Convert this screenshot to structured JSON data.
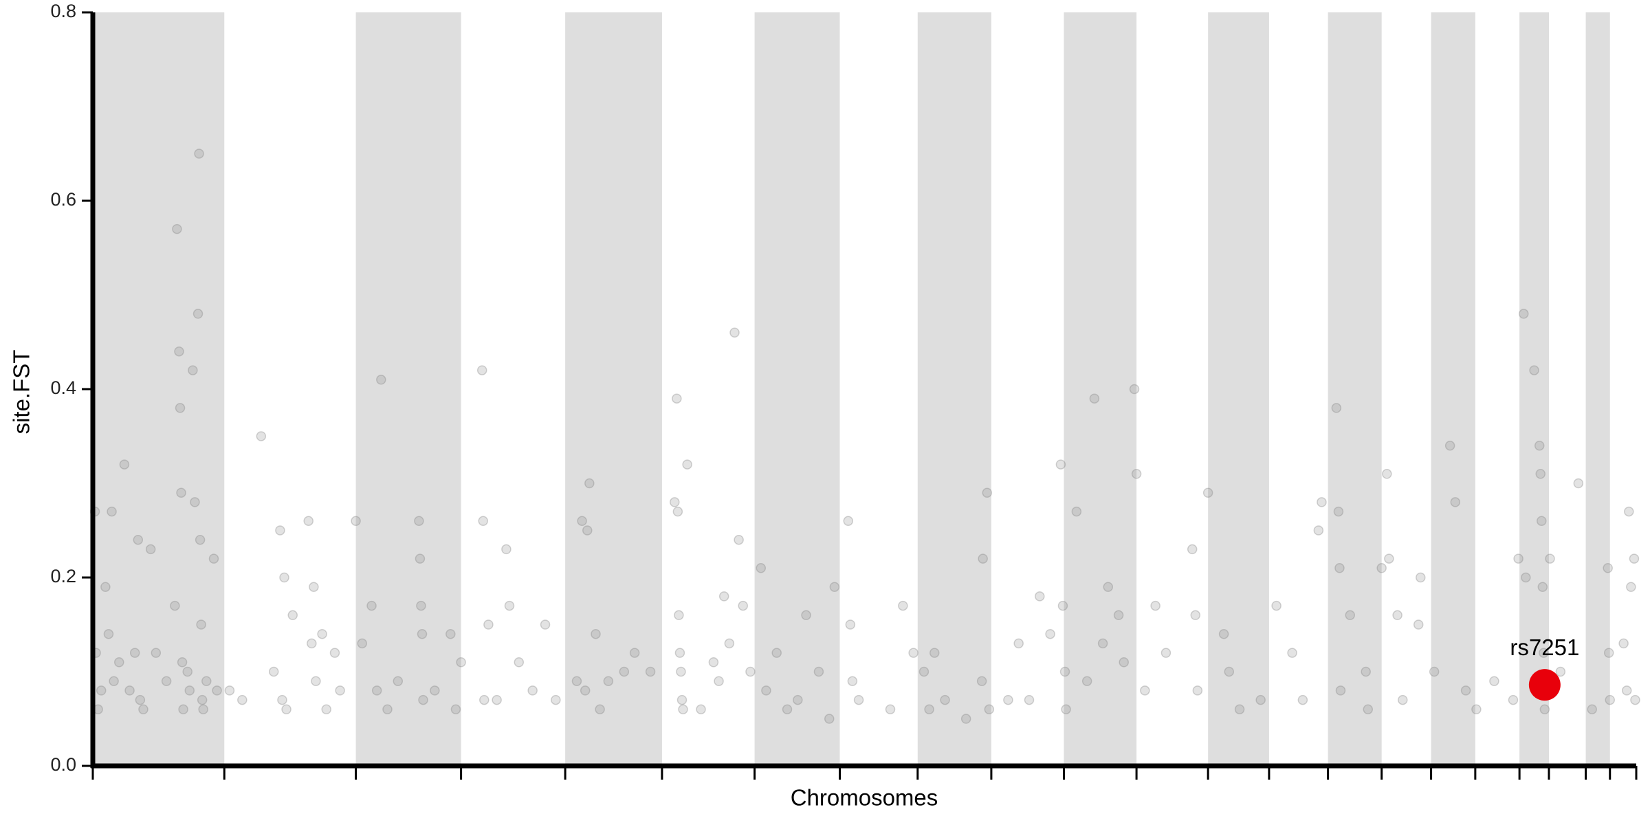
{
  "chart_data": {
    "type": "scatter",
    "xlabel": "Chromosomes",
    "ylabel": "site.FST",
    "xlim": [
      0,
      1467
    ],
    "ylim": [
      0,
      0.8
    ],
    "xticks": [
      0,
      125,
      250,
      350,
      449,
      541,
      629,
      710,
      784,
      854,
      923,
      992,
      1060,
      1118,
      1174,
      1225,
      1272,
      1314,
      1356,
      1384,
      1419,
      1442,
      1467
    ],
    "yticks": [
      {
        "value": 0,
        "label": "0.0"
      },
      0.2,
      0.4,
      0.6,
      0.8
    ],
    "band_color": "#dedede",
    "series": [
      {
        "color": "#808080",
        "x": [
          2,
          3,
          5,
          8,
          12,
          15,
          18,
          20,
          25,
          30,
          35,
          40,
          43,
          45,
          48,
          55,
          60,
          70,
          78,
          80,
          82,
          83,
          84,
          85,
          86,
          90,
          92,
          95,
          97,
          100,
          101,
          102,
          103,
          104,
          105,
          108,
          115,
          118,
          130,
          142,
          160,
          172,
          178,
          180,
          182,
          184,
          190,
          205,
          208,
          210,
          212,
          218,
          222,
          230,
          235,
          250,
          256,
          265,
          270,
          274,
          280,
          290,
          310,
          311,
          312,
          313,
          314,
          325,
          340,
          345,
          350,
          370,
          371,
          372,
          376,
          384,
          393,
          396,
          405,
          418,
          430,
          440,
          460,
          465,
          468,
          470,
          472,
          478,
          482,
          490,
          505,
          515,
          530,
          553,
          555,
          556,
          557,
          558,
          559,
          560,
          561,
          565,
          578,
          590,
          595,
          600,
          605,
          610,
          614,
          618,
          625,
          635,
          640,
          650,
          660,
          670,
          678,
          690,
          700,
          705,
          718,
          720,
          722,
          728,
          758,
          770,
          780,
          790,
          795,
          800,
          810,
          830,
          845,
          846,
          850,
          852,
          870,
          880,
          890,
          900,
          910,
          920,
          922,
          924,
          925,
          935,
          945,
          952,
          960,
          965,
          975,
          980,
          990,
          992,
          1000,
          1010,
          1020,
          1045,
          1048,
          1050,
          1060,
          1075,
          1080,
          1090,
          1110,
          1125,
          1140,
          1150,
          1165,
          1168,
          1182,
          1184,
          1185,
          1186,
          1195,
          1210,
          1212,
          1225,
          1230,
          1232,
          1240,
          1245,
          1260,
          1262,
          1275,
          1290,
          1295,
          1305,
          1315,
          1332,
          1350,
          1355,
          1360,
          1362,
          1370,
          1375,
          1376,
          1377,
          1378,
          1379,
          1380,
          1385,
          1395,
          1412,
          1425,
          1440,
          1441,
          1442,
          1455,
          1458,
          1460,
          1462,
          1465,
          1466
        ],
        "values": [
          0.27,
          0.12,
          0.06,
          0.08,
          0.19,
          0.14,
          0.27,
          0.09,
          0.11,
          0.32,
          0.08,
          0.12,
          0.24,
          0.07,
          0.06,
          0.23,
          0.12,
          0.09,
          0.17,
          0.57,
          0.44,
          0.38,
          0.29,
          0.11,
          0.06,
          0.1,
          0.08,
          0.42,
          0.28,
          0.48,
          0.65,
          0.24,
          0.15,
          0.07,
          0.06,
          0.09,
          0.22,
          0.08,
          0.08,
          0.07,
          0.35,
          0.1,
          0.25,
          0.07,
          0.2,
          0.06,
          0.16,
          0.26,
          0.13,
          0.19,
          0.09,
          0.14,
          0.06,
          0.12,
          0.08,
          0.26,
          0.13,
          0.17,
          0.08,
          0.41,
          0.06,
          0.09,
          0.26,
          0.22,
          0.17,
          0.14,
          0.07,
          0.08,
          0.14,
          0.06,
          0.11,
          0.42,
          0.26,
          0.07,
          0.15,
          0.07,
          0.23,
          0.17,
          0.11,
          0.08,
          0.15,
          0.07,
          0.09,
          0.26,
          0.08,
          0.25,
          0.3,
          0.14,
          0.06,
          0.09,
          0.1,
          0.12,
          0.1,
          0.28,
          0.39,
          0.27,
          0.16,
          0.12,
          0.1,
          0.07,
          0.06,
          0.32,
          0.06,
          0.11,
          0.09,
          0.18,
          0.13,
          0.46,
          0.24,
          0.17,
          0.1,
          0.21,
          0.08,
          0.12,
          0.06,
          0.07,
          0.16,
          0.1,
          0.05,
          0.19,
          0.26,
          0.15,
          0.09,
          0.07,
          0.06,
          0.17,
          0.12,
          0.1,
          0.06,
          0.12,
          0.07,
          0.05,
          0.09,
          0.22,
          0.29,
          0.06,
          0.07,
          0.13,
          0.07,
          0.18,
          0.14,
          0.32,
          0.17,
          0.1,
          0.06,
          0.27,
          0.09,
          0.39,
          0.13,
          0.19,
          0.16,
          0.11,
          0.4,
          0.31,
          0.08,
          0.17,
          0.12,
          0.23,
          0.16,
          0.08,
          0.29,
          0.14,
          0.1,
          0.06,
          0.07,
          0.17,
          0.12,
          0.07,
          0.25,
          0.28,
          0.38,
          0.27,
          0.21,
          0.08,
          0.16,
          0.1,
          0.06,
          0.21,
          0.31,
          0.22,
          0.16,
          0.07,
          0.15,
          0.2,
          0.1,
          0.34,
          0.28,
          0.08,
          0.06,
          0.09,
          0.07,
          0.22,
          0.48,
          0.2,
          0.42,
          0.34,
          0.31,
          0.26,
          0.19,
          0.12,
          0.06,
          0.22,
          0.1,
          0.3,
          0.06,
          0.21,
          0.12,
          0.07,
          0.13,
          0.08,
          0.27,
          0.19,
          0.22,
          0.07
        ]
      }
    ],
    "highlight": {
      "label": "rs7251",
      "x": 1380,
      "value": 0.086,
      "color": "#e8000b"
    }
  }
}
